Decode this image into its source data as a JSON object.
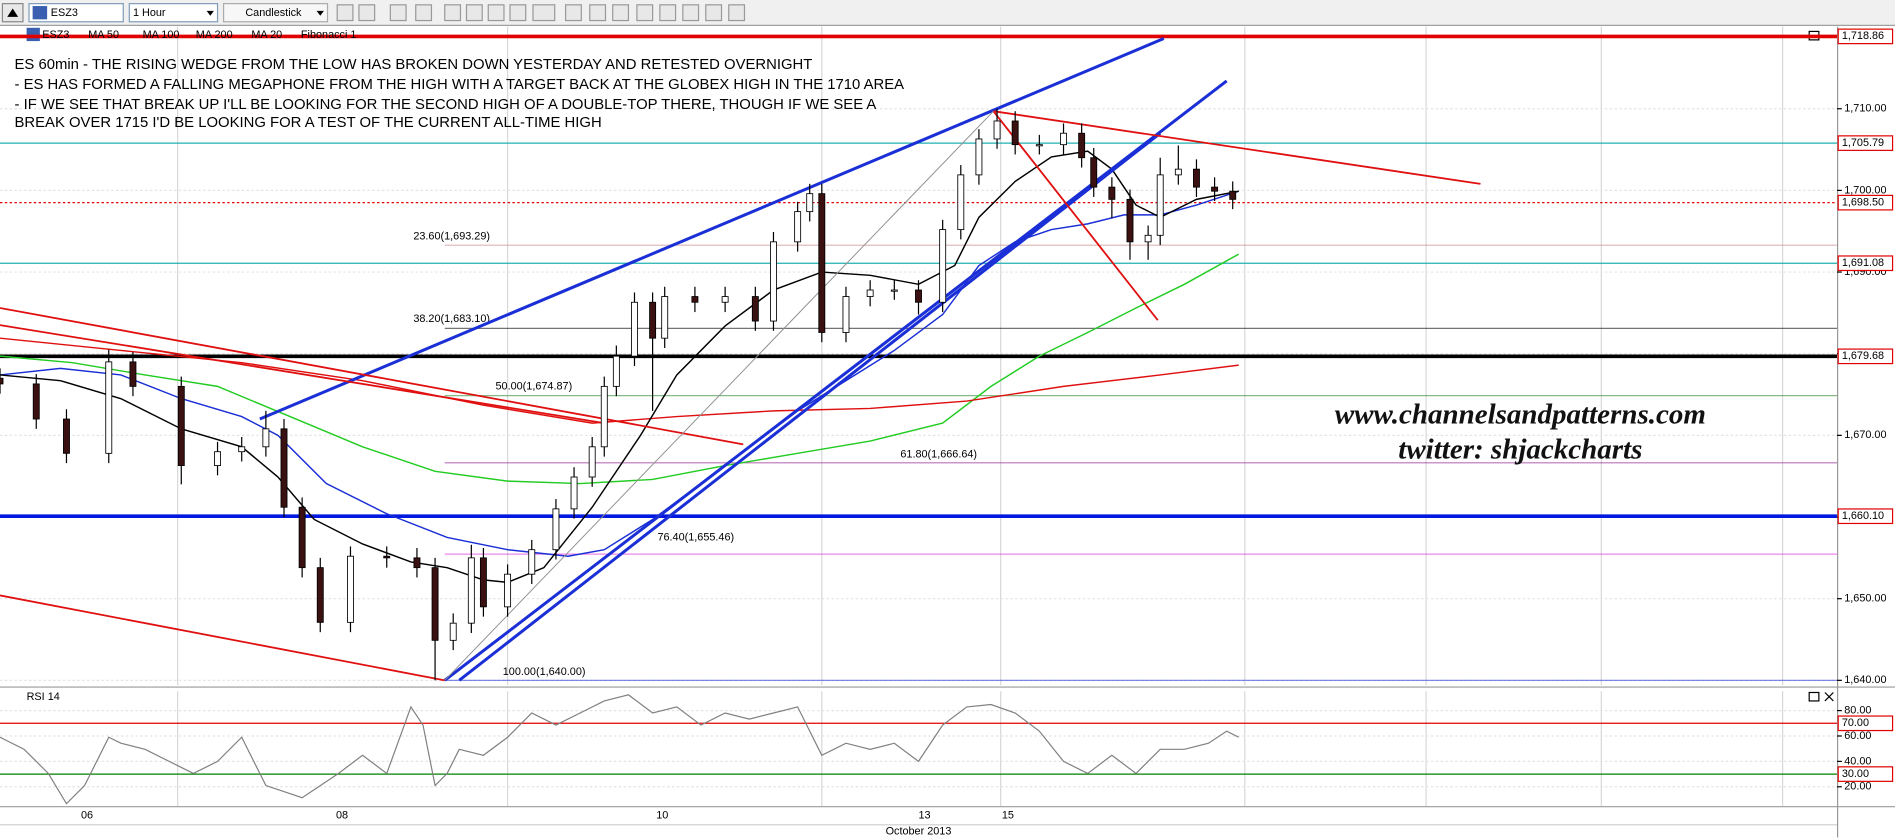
{
  "toolbar": {
    "symbol": "ESZ3",
    "interval": "1 Hour",
    "chart_style": "Candlestick"
  },
  "chart_data": [
    {
      "type": "candlestick",
      "annotations": [
        "ES 60min - THE RISING WEDGE FROM THE LOW HAS BROKEN DOWN YESTERDAY AND RETESTED OVERNIGHT",
        "- ES HAS FORMED A FALLING MEGAPHONE FROM THE HIGH WITH A TARGET BACK AT THE GLOBEX HIGH  IN THE 1710 AREA",
        "- IF WE SEE THAT BREAK UP I'LL BE LOOKING FOR THE SECOND HIGH OF A DOUBLE-TOP THERE, THOUGH IF WE SEE A",
        "BREAK OVER 1715 I'D BE LOOKING FOR A TEST OF THE CURRENT ALL-TIME HIGH"
      ],
      "watermark": [
        "www.channelsandpatterns.com",
        "twitter: shjackcharts"
      ],
      "x": [
        0,
        6,
        11,
        18,
        22,
        30,
        36,
        40,
        44,
        47,
        50,
        53,
        58,
        64,
        69,
        72,
        75,
        78,
        80,
        84,
        88,
        92,
        95,
        98,
        100,
        102,
        105,
        108,
        110,
        115,
        120,
        125,
        128,
        132,
        134,
        136,
        140,
        144,
        148,
        152,
        156,
        159,
        162,
        165,
        168,
        172,
        176,
        179,
        181,
        184,
        187,
        190,
        192,
        195,
        198,
        201,
        204
      ],
      "open": [
        1677.0,
        1676.3,
        1672.0,
        1667.8,
        1679.0,
        1676.0,
        1666.3,
        1668.0,
        1668.6,
        1670.8,
        1661.2,
        1653.8,
        1647.1,
        1655.2,
        1655.0,
        1653.8,
        1644.9,
        1647.0,
        1655.0,
        1649.0,
        1653.0,
        1656.0,
        1661.0,
        1664.9,
        1668.6,
        1676.0,
        1679.7,
        1686.3,
        1681.9,
        1687.0,
        1686.3,
        1687.0,
        1684.0,
        1693.7,
        1697.4,
        1699.6,
        1682.6,
        1687.0,
        1687.8,
        1687.8,
        1686.3,
        1695.2,
        1701.9,
        1706.3,
        1708.5,
        1705.6,
        1705.6,
        1707.0,
        1704.0,
        1700.4,
        1698.9,
        1693.7,
        1694.5,
        1701.9,
        1702.6,
        1700.4,
        1699.9
      ],
      "high": [
        1678.2,
        1677.5,
        1673.2,
        1680.5,
        1680.2,
        1677.2,
        1669.2,
        1669.8,
        1673.0,
        1672.0,
        1662.4,
        1655.0,
        1656.4,
        1656.4,
        1656.2,
        1655.0,
        1648.2,
        1656.6,
        1656.2,
        1654.2,
        1657.2,
        1662.2,
        1666.1,
        1669.8,
        1677.2,
        1681.0,
        1687.5,
        1687.5,
        1688.2,
        1688.2,
        1688.2,
        1688.2,
        1694.9,
        1698.6,
        1700.8,
        1700.8,
        1688.2,
        1689.0,
        1689.0,
        1689.0,
        1696.4,
        1703.1,
        1707.5,
        1710.0,
        1709.7,
        1706.8,
        1708.2,
        1708.2,
        1705.2,
        1701.6,
        1700.1,
        1695.7,
        1704.0,
        1705.5,
        1703.8,
        1701.6,
        1701.1
      ],
      "low": [
        1675.1,
        1670.8,
        1666.6,
        1666.6,
        1674.8,
        1664.0,
        1665.1,
        1666.8,
        1667.4,
        1660.0,
        1652.6,
        1645.9,
        1645.9,
        1653.8,
        1652.6,
        1640.0,
        1643.7,
        1645.8,
        1647.8,
        1647.8,
        1651.8,
        1654.8,
        1659.8,
        1663.7,
        1667.4,
        1674.8,
        1678.5,
        1673.0,
        1680.7,
        1685.1,
        1685.1,
        1682.8,
        1682.8,
        1692.5,
        1696.2,
        1681.4,
        1681.4,
        1685.8,
        1686.6,
        1684.8,
        1685.1,
        1694.0,
        1700.7,
        1705.1,
        1704.4,
        1704.4,
        1704.4,
        1702.8,
        1699.2,
        1696.6,
        1691.5,
        1691.5,
        1693.3,
        1700.7,
        1699.2,
        1698.7,
        1697.7
      ],
      "close": [
        1676.3,
        1672.0,
        1667.8,
        1679.0,
        1676.0,
        1666.3,
        1668.0,
        1668.6,
        1670.8,
        1661.2,
        1653.8,
        1647.1,
        1655.2,
        1655.0,
        1653.8,
        1644.9,
        1647.0,
        1655.0,
        1649.0,
        1653.0,
        1656.0,
        1661.0,
        1664.9,
        1668.6,
        1676.0,
        1679.7,
        1686.3,
        1681.9,
        1687.0,
        1686.3,
        1687.0,
        1684.0,
        1693.7,
        1697.4,
        1699.6,
        1682.6,
        1687.0,
        1687.8,
        1687.8,
        1686.3,
        1695.2,
        1701.9,
        1706.3,
        1708.5,
        1705.6,
        1705.6,
        1707.0,
        1704.0,
        1700.4,
        1698.9,
        1693.7,
        1694.5,
        1701.9,
        1702.6,
        1700.4,
        1699.9,
        1698.9
      ],
      "up_color": "#ffffff",
      "down_color": "#3a1010",
      "xlim": [
        0,
        304
      ],
      "ylim": [
        1639.4,
        1720.06
      ],
      "yticks": [
        {
          "value": 1640,
          "label": "1,640.00"
        },
        {
          "value": 1650,
          "label": "1,650.00"
        },
        {
          "value": 1660,
          "label": "1,660.00"
        },
        {
          "value": 1670,
          "label": "1,670.00"
        },
        {
          "value": 1680,
          "label": "1,680.00"
        },
        {
          "value": 1690,
          "label": "1,690.00"
        },
        {
          "value": 1700,
          "label": "1,700.00"
        },
        {
          "value": 1710,
          "label": "1,710.00"
        }
      ],
      "xgrid": [
        29.4,
        84,
        136,
        165.6,
        206,
        236,
        265,
        295
      ],
      "grid": true,
      "series": [
        {
          "name": "MA 50",
          "color": "#1a2fd6",
          "x": [
            0,
            10,
            20,
            30,
            40,
            46,
            54,
            64,
            74,
            84,
            94,
            100,
            108,
            116,
            124,
            132,
            140,
            148,
            156,
            162,
            168,
            174,
            180,
            186,
            192,
            198,
            205
          ],
          "values": [
            1677.4,
            1678.2,
            1677.4,
            1674.5,
            1672.3,
            1670.0,
            1664.1,
            1660.4,
            1657.5,
            1656.0,
            1655.2,
            1656.0,
            1659.7,
            1664.1,
            1668.6,
            1673.0,
            1676.7,
            1680.4,
            1684.8,
            1690.8,
            1693.7,
            1695.2,
            1695.9,
            1697.0,
            1697.0,
            1698.2,
            1699.9
          ]
        },
        {
          "name": "MA 100",
          "color": "#22cc22",
          "x": [
            0,
            12,
            24,
            36,
            48,
            60,
            72,
            84,
            96,
            108,
            120,
            132,
            144,
            156,
            164,
            172,
            180,
            188,
            196,
            205
          ],
          "values": [
            1679.7,
            1678.9,
            1677.4,
            1676.0,
            1672.3,
            1668.6,
            1665.6,
            1664.4,
            1664.1,
            1664.6,
            1666.3,
            1667.8,
            1669.3,
            1671.5,
            1676.0,
            1679.7,
            1682.6,
            1685.6,
            1688.5,
            1692.2
          ]
        },
        {
          "name": "MA 200",
          "color": "#e01010",
          "x": [
            0,
            20,
            40,
            60,
            80,
            98,
            112,
            128,
            144,
            160,
            176,
            192,
            205
          ],
          "values": [
            1681.9,
            1680.4,
            1678.9,
            1676.7,
            1673.7,
            1671.5,
            1672.3,
            1673.0,
            1673.3,
            1674.2,
            1676.0,
            1677.4,
            1678.6
          ]
        },
        {
          "name": "MA 20",
          "color": "#000000",
          "x": [
            0,
            10,
            20,
            30,
            40,
            46,
            52,
            60,
            68,
            74,
            80,
            84,
            90,
            98,
            106,
            112,
            120,
            128,
            136,
            144,
            152,
            158,
            162,
            168,
            174,
            180,
            184,
            188,
            192,
            198,
            205
          ],
          "values": [
            1677.4,
            1676.7,
            1674.5,
            1670.8,
            1668.6,
            1664.9,
            1659.7,
            1656.7,
            1654.5,
            1653.8,
            1652.3,
            1652.0,
            1653.8,
            1661.2,
            1670.0,
            1677.4,
            1683.4,
            1687.8,
            1690.0,
            1689.6,
            1688.5,
            1690.8,
            1696.7,
            1701.1,
            1704.1,
            1704.8,
            1702.6,
            1698.2,
            1696.7,
            1698.9,
            1699.9
          ]
        }
      ],
      "levels": [
        {
          "value": 1718.86,
          "label": "1,718.86",
          "color": "#e00000",
          "width": 3
        },
        {
          "value": 1705.79,
          "label": "1,705.79",
          "color": "#20b0b0",
          "width": 1
        },
        {
          "value": 1698.5,
          "label": "1,698.50",
          "color": "#e00000",
          "width": 1,
          "style": "dotted"
        },
        {
          "value": 1691.08,
          "label": "1,691.08",
          "color": "#20b0b0",
          "width": 1
        },
        {
          "value": 1679.68,
          "label": "1,679.68",
          "color": "#000000",
          "width": 3
        },
        {
          "value": 1660.1,
          "label": "1,660.10",
          "color": "#0018e0",
          "width": 3
        }
      ],
      "fibonacci": {
        "name": "Fibonacci 1",
        "x_start": 73.6,
        "levels": [
          {
            "label": "23.60(1,693.29)",
            "value": 1693.29,
            "color": "#c07878"
          },
          {
            "label": "38.20(1,683.10)",
            "value": 1683.1,
            "color": "#000000"
          },
          {
            "label": "50.00(1,674.87)",
            "value": 1674.87,
            "color": "#208020"
          },
          {
            "label": "61.80(1,666.64)",
            "value": 1666.64,
            "color": "#800080"
          },
          {
            "label": "76.40(1,655.46)",
            "value": 1655.46,
            "color": "#e020e0"
          },
          {
            "label": "100.00(1,640.00)",
            "value": 1640,
            "color": "#1a2fd6"
          }
        ]
      },
      "trendlines": [
        {
          "x": [
            43,
            192.6
          ],
          "y": [
            1672.0,
            1718.6
          ],
          "color": "#1a2fd6",
          "width": 2.5
        },
        {
          "x": [
            73.6,
            203
          ],
          "y": [
            1640,
            1713.4
          ],
          "color": "#1a2fd6",
          "width": 2.5
        },
        {
          "x": [
            76,
            192
          ],
          "y": [
            1640,
            1707.0
          ],
          "color": "#1a2fd6",
          "width": 2.5
        },
        {
          "x": [
            0,
            123
          ],
          "y": [
            1685.6,
            1668.9
          ],
          "color": "#e01010",
          "width": 1.5
        },
        {
          "x": [
            0,
            100
          ],
          "y": [
            1683.5,
            1671.5
          ],
          "color": "#e01010",
          "width": 1.5
        },
        {
          "x": [
            0,
            73.6
          ],
          "y": [
            1650.4,
            1640
          ],
          "color": "#e01010",
          "width": 1.5
        },
        {
          "x": [
            164.4,
            245
          ],
          "y": [
            1709.7,
            1700.8
          ],
          "color": "#e01010",
          "width": 1.5
        },
        {
          "x": [
            164.4,
            191.6
          ],
          "y": [
            1709.7,
            1684.1
          ],
          "color": "#e01010",
          "width": 1.5
        },
        {
          "x": [
            73.6,
            164.4
          ],
          "y": [
            1640,
            1709.7
          ],
          "color": "#909090",
          "width": 0.8
        }
      ]
    },
    {
      "type": "line",
      "name": "RSI 14",
      "color": "#808080",
      "x": [
        0,
        4,
        8,
        11,
        14,
        18,
        20,
        24,
        28,
        32,
        36,
        40,
        44,
        50,
        56,
        60,
        64,
        68,
        70,
        72,
        74,
        76,
        80,
        84,
        88,
        92,
        96,
        100,
        104,
        108,
        112,
        116,
        120,
        124,
        128,
        132,
        136,
        140,
        144,
        148,
        152,
        156,
        160,
        164,
        168,
        172,
        176,
        180,
        184,
        188,
        192,
        196,
        200,
        203,
        205
      ],
      "values": [
        59.0,
        49.5,
        30.5,
        6.7,
        21.0,
        59.0,
        54.3,
        49.5,
        40.0,
        30.5,
        40.0,
        59.0,
        21.0,
        11.4,
        30.5,
        44.8,
        30.5,
        82.9,
        68.6,
        21.0,
        30.5,
        49.5,
        44.8,
        59.0,
        78.1,
        68.6,
        78.1,
        87.6,
        92.4,
        78.1,
        82.9,
        68.6,
        78.1,
        73.3,
        78.1,
        82.9,
        44.8,
        54.3,
        49.5,
        54.3,
        40.0,
        68.6,
        82.9,
        84.8,
        78.1,
        63.8,
        40.0,
        30.5,
        44.8,
        30.5,
        49.5,
        49.5,
        54.3,
        63.8,
        59.0
      ],
      "xlim": [
        0,
        304
      ],
      "ylim": [
        4.8,
        95.2
      ],
      "yticks": [
        {
          "value": 20,
          "label": "20.00"
        },
        {
          "value": 40,
          "label": "40.00"
        },
        {
          "value": 60,
          "label": "60.00"
        },
        {
          "value": 80,
          "label": "80.00"
        }
      ],
      "levels": [
        {
          "value": 70,
          "label": "70.00",
          "color": "#e00000"
        },
        {
          "value": 30,
          "label": "30.00",
          "color": "#008000"
        }
      ],
      "xticks": [
        {
          "value": 14.4,
          "label": "06"
        },
        {
          "value": 56.6,
          "label": "08"
        },
        {
          "value": 109.6,
          "label": "10"
        },
        {
          "value": 153,
          "label": "13"
        },
        {
          "value": 166.8,
          "label": "15"
        }
      ],
      "x_axis_title": "October 2013"
    }
  ]
}
